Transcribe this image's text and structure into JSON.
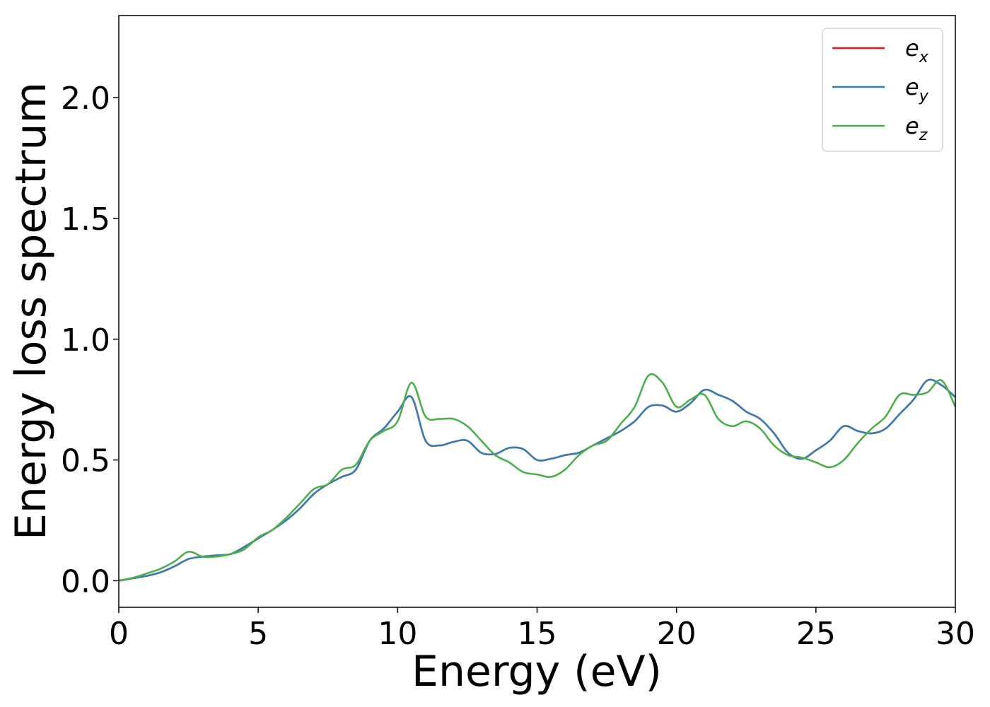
{
  "chart_data": {
    "type": "line",
    "xlabel": "Energy (eV)",
    "ylabel": "Energy loss spectrum",
    "xlim": [
      0,
      30
    ],
    "ylim": [
      -0.11,
      2.34
    ],
    "xticks": [
      0,
      5,
      10,
      15,
      20,
      25,
      30
    ],
    "yticks": [
      0.0,
      0.5,
      1.0,
      1.5,
      2.0
    ],
    "xtick_labels": [
      "0",
      "5",
      "10",
      "15",
      "20",
      "25",
      "30"
    ],
    "ytick_labels": [
      "0.0",
      "0.5",
      "1.0",
      "1.5",
      "2.0"
    ],
    "grid": false,
    "legend_position": "top-right",
    "series": [
      {
        "name": "e",
        "subscript": "x",
        "color": "#e41a1c",
        "x": [
          0,
          0.5,
          1,
          1.5,
          2,
          2.5,
          3,
          3.5,
          4,
          4.5,
          5,
          5.5,
          6,
          6.5,
          7,
          7.5,
          8,
          8.5,
          9,
          9.5,
          10,
          10.5,
          11,
          11.5,
          12,
          12.5,
          13,
          13.5,
          14,
          14.5,
          15,
          15.5,
          16,
          16.5,
          17,
          17.5,
          18,
          18.5,
          19,
          19.5,
          20,
          20.5,
          21,
          21.5,
          22,
          22.5,
          23,
          23.5,
          24,
          24.5,
          25,
          25.5,
          26,
          26.5,
          27,
          27.5,
          28,
          28.5,
          29,
          29.5,
          30
        ],
        "y": [
          0.0,
          0.01,
          0.02,
          0.035,
          0.06,
          0.09,
          0.1,
          0.105,
          0.11,
          0.14,
          0.175,
          0.21,
          0.25,
          0.3,
          0.36,
          0.4,
          0.43,
          0.46,
          0.58,
          0.63,
          0.7,
          0.76,
          0.58,
          0.56,
          0.575,
          0.58,
          0.53,
          0.525,
          0.55,
          0.545,
          0.5,
          0.505,
          0.52,
          0.53,
          0.56,
          0.59,
          0.62,
          0.66,
          0.72,
          0.725,
          0.7,
          0.735,
          0.79,
          0.77,
          0.745,
          0.7,
          0.67,
          0.61,
          0.53,
          0.505,
          0.54,
          0.58,
          0.64,
          0.62,
          0.61,
          0.63,
          0.69,
          0.75,
          0.83,
          0.81,
          0.76
        ]
      },
      {
        "name": "e",
        "subscript": "y",
        "color": "#377eb8",
        "x": [
          0,
          0.5,
          1,
          1.5,
          2,
          2.5,
          3,
          3.5,
          4,
          4.5,
          5,
          5.5,
          6,
          6.5,
          7,
          7.5,
          8,
          8.5,
          9,
          9.5,
          10,
          10.5,
          11,
          11.5,
          12,
          12.5,
          13,
          13.5,
          14,
          14.5,
          15,
          15.5,
          16,
          16.5,
          17,
          17.5,
          18,
          18.5,
          19,
          19.5,
          20,
          20.5,
          21,
          21.5,
          22,
          22.5,
          23,
          23.5,
          24,
          24.5,
          25,
          25.5,
          26,
          26.5,
          27,
          27.5,
          28,
          28.5,
          29,
          29.5,
          30
        ],
        "y": [
          0.0,
          0.01,
          0.02,
          0.035,
          0.06,
          0.09,
          0.1,
          0.105,
          0.11,
          0.14,
          0.175,
          0.21,
          0.25,
          0.3,
          0.36,
          0.4,
          0.43,
          0.46,
          0.58,
          0.63,
          0.7,
          0.76,
          0.58,
          0.56,
          0.575,
          0.58,
          0.53,
          0.525,
          0.55,
          0.545,
          0.5,
          0.505,
          0.52,
          0.53,
          0.56,
          0.59,
          0.62,
          0.66,
          0.72,
          0.725,
          0.7,
          0.735,
          0.79,
          0.77,
          0.745,
          0.7,
          0.67,
          0.61,
          0.53,
          0.505,
          0.54,
          0.58,
          0.64,
          0.62,
          0.61,
          0.63,
          0.69,
          0.75,
          0.83,
          0.81,
          0.76
        ]
      },
      {
        "name": "e",
        "subscript": "z",
        "color": "#4daf4a",
        "x": [
          0,
          0.5,
          1,
          1.5,
          2,
          2.5,
          3,
          3.5,
          4,
          4.5,
          5,
          5.5,
          6,
          6.5,
          7,
          7.5,
          8,
          8.5,
          9,
          9.5,
          10,
          10.5,
          11,
          11.5,
          12,
          12.5,
          13,
          13.5,
          14,
          14.5,
          15,
          15.5,
          16,
          16.5,
          17,
          17.5,
          18,
          18.5,
          19,
          19.5,
          20,
          20.5,
          21,
          21.5,
          22,
          22.5,
          23,
          23.5,
          24,
          24.5,
          25,
          25.5,
          26,
          26.5,
          27,
          27.5,
          28,
          28.5,
          29,
          29.5,
          30
        ],
        "y": [
          0.0,
          0.012,
          0.03,
          0.05,
          0.08,
          0.12,
          0.1,
          0.1,
          0.11,
          0.13,
          0.18,
          0.21,
          0.26,
          0.32,
          0.38,
          0.4,
          0.46,
          0.48,
          0.58,
          0.62,
          0.66,
          0.82,
          0.68,
          0.67,
          0.67,
          0.64,
          0.58,
          0.52,
          0.49,
          0.45,
          0.44,
          0.43,
          0.46,
          0.52,
          0.56,
          0.58,
          0.65,
          0.72,
          0.85,
          0.82,
          0.72,
          0.75,
          0.77,
          0.67,
          0.64,
          0.66,
          0.63,
          0.56,
          0.52,
          0.51,
          0.49,
          0.47,
          0.5,
          0.57,
          0.63,
          0.68,
          0.77,
          0.77,
          0.78,
          0.83,
          0.72
        ]
      }
    ]
  }
}
